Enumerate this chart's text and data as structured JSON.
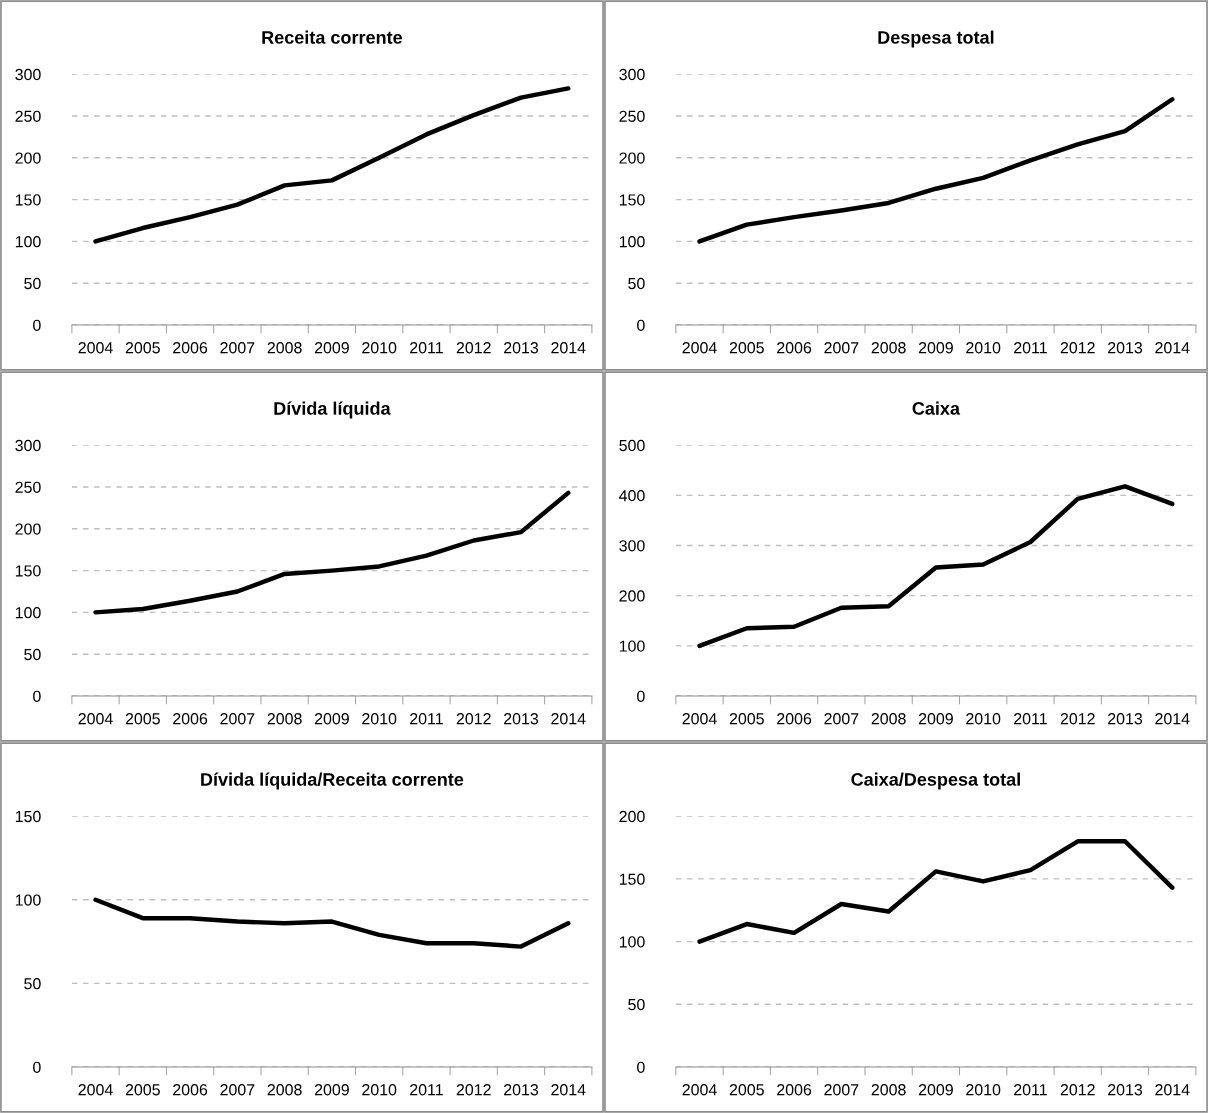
{
  "chart_data": [
    {
      "type": "line",
      "title": "Receita corrente",
      "categories": [
        "2004",
        "2005",
        "2006",
        "2007",
        "2008",
        "2009",
        "2010",
        "2011",
        "2012",
        "2013",
        "2014"
      ],
      "series": [
        {
          "color": "#000000",
          "values": [
            100,
            116,
            129,
            144,
            167,
            173,
            200,
            228,
            251,
            272,
            283
          ]
        }
      ],
      "ylim": [
        0,
        300
      ],
      "yticks": [
        0,
        50,
        100,
        150,
        200,
        250,
        300
      ],
      "grid": "y"
    },
    {
      "type": "line",
      "title": "Despesa total",
      "categories": [
        "2004",
        "2005",
        "2006",
        "2007",
        "2008",
        "2009",
        "2010",
        "2011",
        "2012",
        "2013",
        "2014"
      ],
      "series": [
        {
          "color": "#000000",
          "values": [
            100,
            120,
            129,
            137,
            146,
            163,
            176,
            197,
            216,
            232,
            270
          ]
        }
      ],
      "ylim": [
        0,
        300
      ],
      "yticks": [
        0,
        50,
        100,
        150,
        200,
        250,
        300
      ],
      "grid": "y"
    },
    {
      "type": "line",
      "title": "Dívida líquida",
      "categories": [
        "2004",
        "2005",
        "2006",
        "2007",
        "2008",
        "2009",
        "2010",
        "2011",
        "2012",
        "2013",
        "2014"
      ],
      "series": [
        {
          "color": "#000000",
          "values": [
            100,
            104,
            114,
            125,
            146,
            150,
            155,
            168,
            186,
            196,
            243
          ]
        }
      ],
      "ylim": [
        0,
        300
      ],
      "yticks": [
        0,
        50,
        100,
        150,
        200,
        250,
        300
      ],
      "grid": "y"
    },
    {
      "type": "line",
      "title": "Caixa",
      "categories": [
        "2004",
        "2005",
        "2006",
        "2007",
        "2008",
        "2009",
        "2010",
        "2011",
        "2012",
        "2013",
        "2014"
      ],
      "series": [
        {
          "color": "#000000",
          "values": [
            100,
            135,
            138,
            176,
            179,
            256,
            262,
            307,
            393,
            418,
            383
          ]
        }
      ],
      "ylim": [
        0,
        500
      ],
      "yticks": [
        0,
        100,
        200,
        300,
        400,
        500
      ],
      "grid": "y"
    },
    {
      "type": "line",
      "title": "Dívida líquida/Receita corrente",
      "categories": [
        "2004",
        "2005",
        "2006",
        "2007",
        "2008",
        "2009",
        "2010",
        "2011",
        "2012",
        "2013",
        "2014"
      ],
      "series": [
        {
          "color": "#000000",
          "values": [
            100,
            89,
            89,
            87,
            86,
            87,
            79,
            74,
            74,
            72,
            86
          ]
        }
      ],
      "ylim": [
        0,
        150
      ],
      "yticks": [
        0,
        50,
        100,
        150
      ],
      "grid": "y"
    },
    {
      "type": "line",
      "title": "Caixa/Despesa total",
      "categories": [
        "2004",
        "2005",
        "2006",
        "2007",
        "2008",
        "2009",
        "2010",
        "2011",
        "2012",
        "2013",
        "2014"
      ],
      "series": [
        {
          "color": "#000000",
          "values": [
            100,
            114,
            107,
            130,
            124,
            156,
            148,
            157,
            180,
            180,
            143
          ]
        }
      ],
      "ylim": [
        0,
        200
      ],
      "yticks": [
        0,
        50,
        100,
        150,
        200
      ],
      "grid": "y"
    }
  ]
}
